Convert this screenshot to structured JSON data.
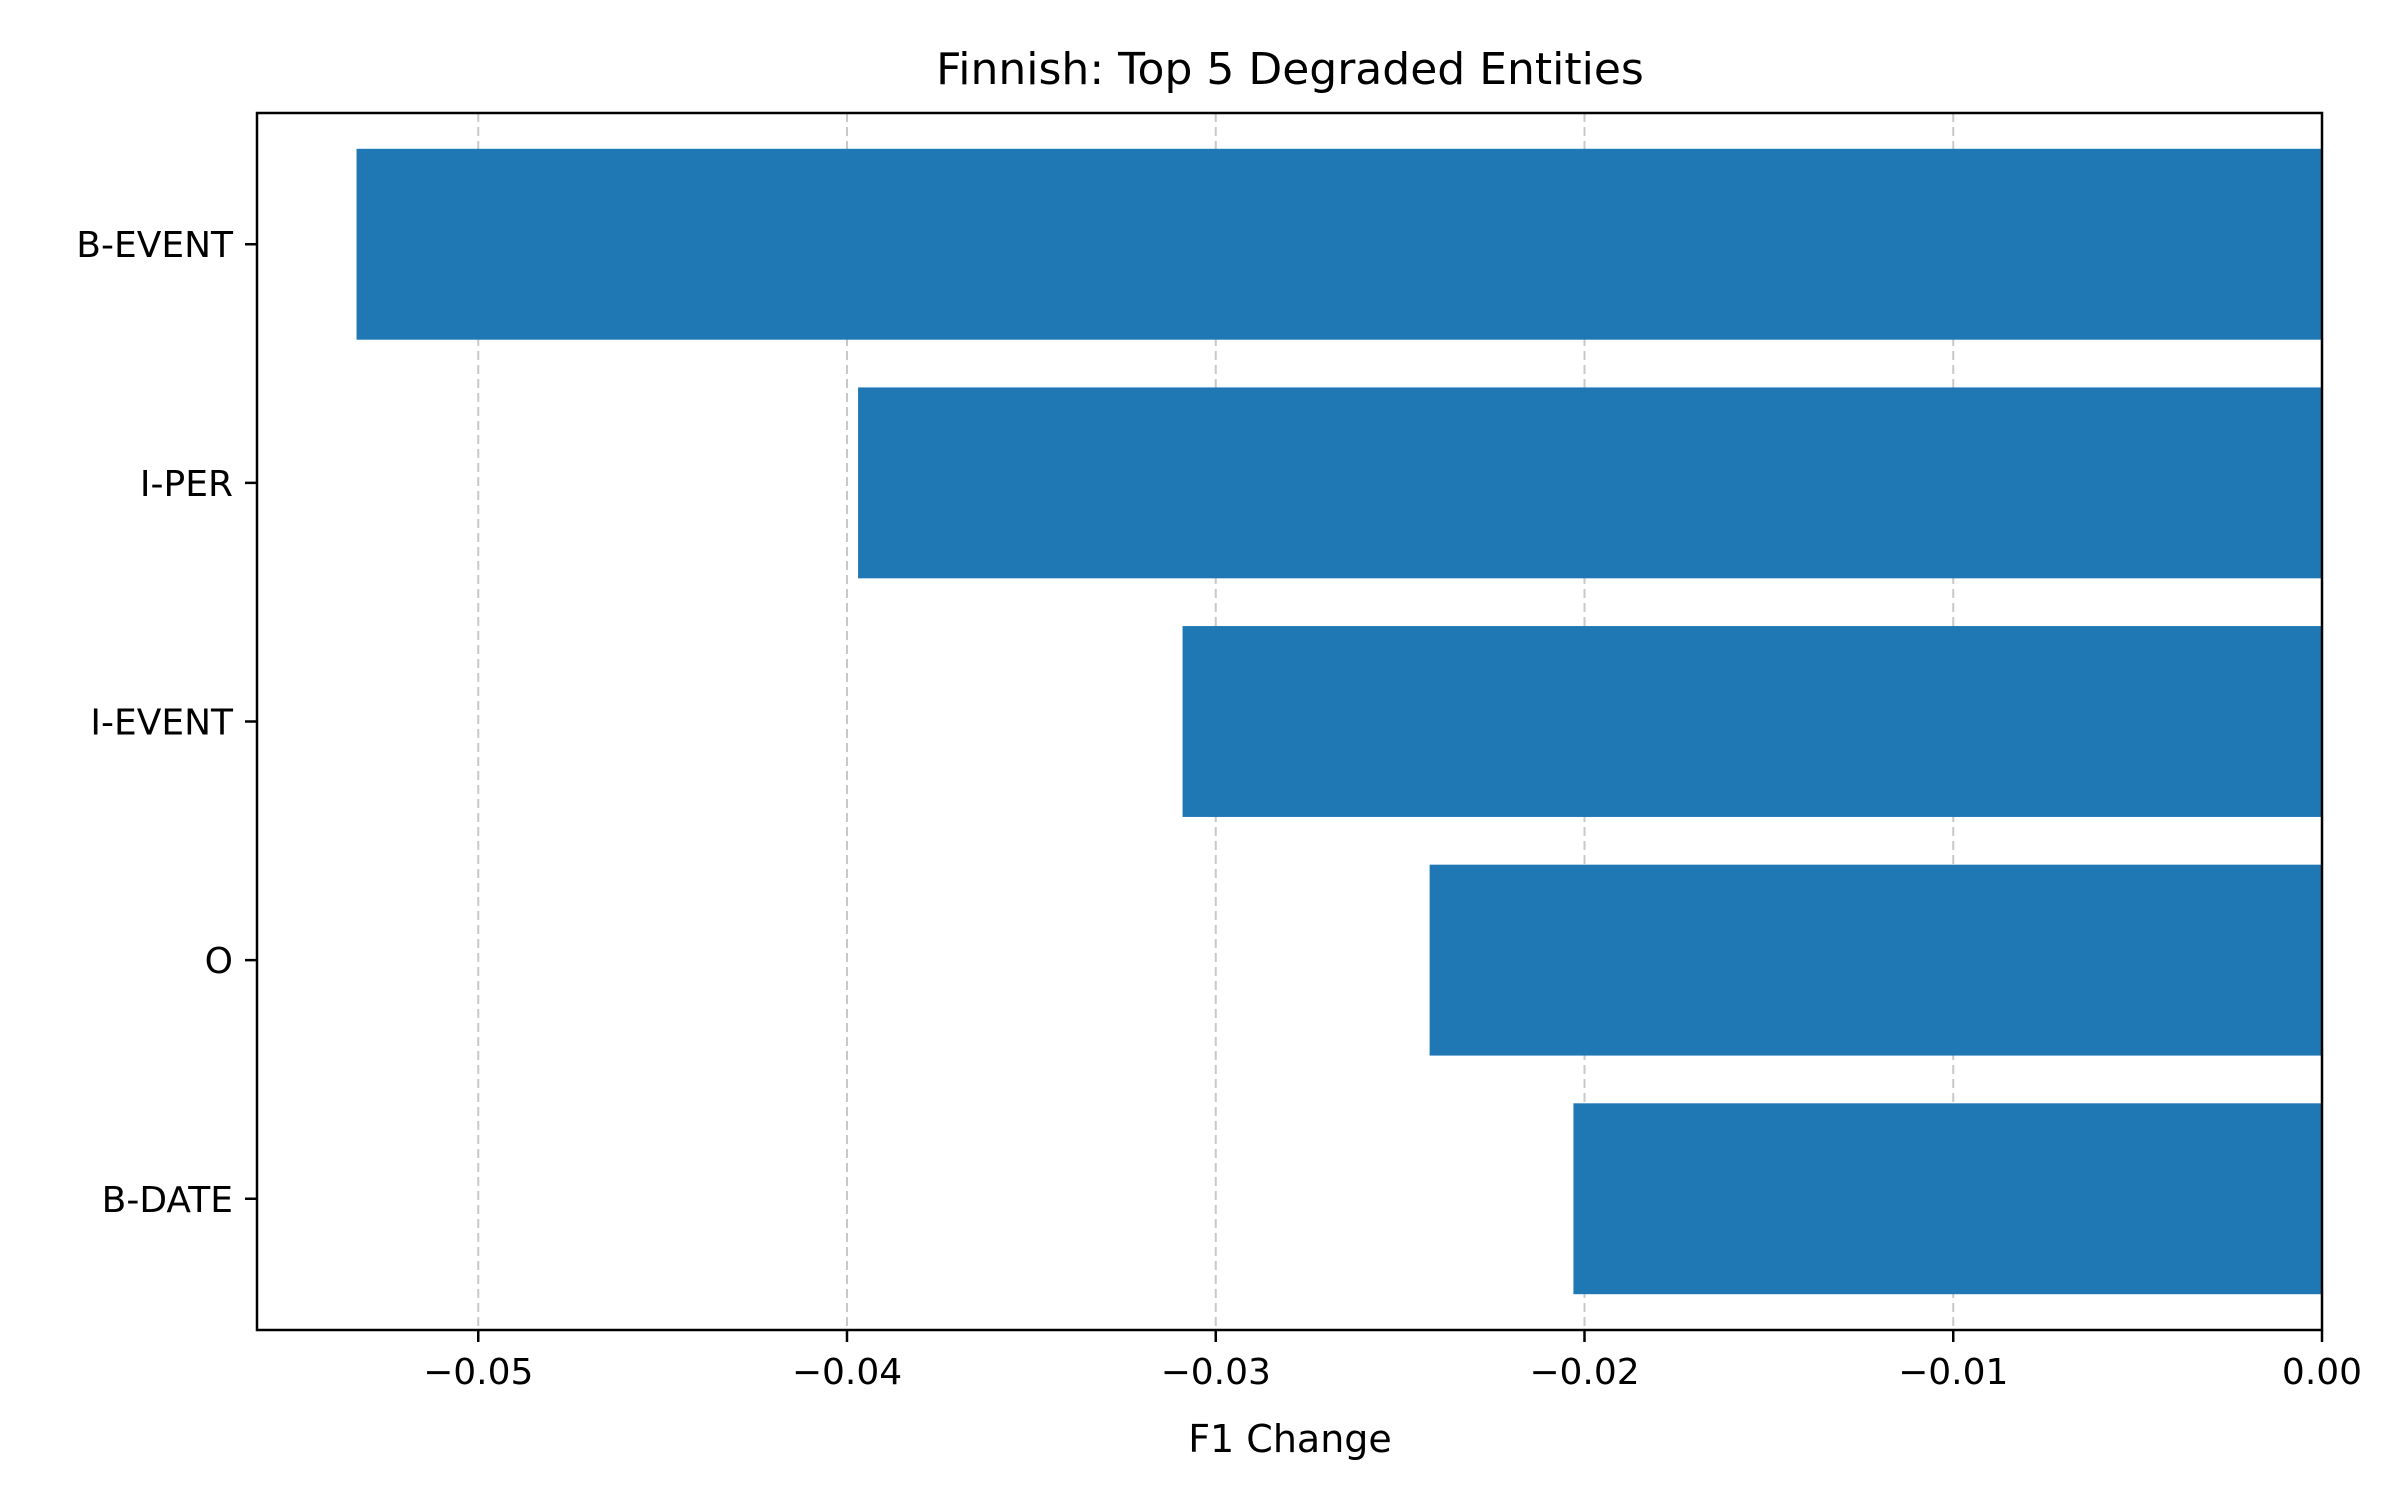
{
  "chart_data": {
    "type": "bar",
    "orientation": "horizontal",
    "title": "Finnish: Top 5 Degraded Entities",
    "xlabel": "F1 Change",
    "ylabel": "",
    "categories": [
      "B-EVENT",
      "I-PER",
      "I-EVENT",
      "O",
      "B-DATE"
    ],
    "series": [
      {
        "values": [
          -0.0533,
          -0.0397,
          -0.0309,
          -0.0242,
          -0.0203
        ]
      }
    ],
    "xlim": [
      -0.056,
      0.0
    ],
    "xticks": [
      -0.05,
      -0.04,
      -0.03,
      -0.02,
      -0.01,
      0.0
    ],
    "xtick_labels": [
      "−0.05",
      "−0.04",
      "−0.03",
      "−0.02",
      "−0.01",
      "0.00"
    ],
    "grid": {
      "x": true,
      "y": false,
      "style": "dashed"
    },
    "legend": "none",
    "colors": {
      "bar": "#1f77b4",
      "grid": "#c8c8c8",
      "axis": "#000000"
    }
  }
}
